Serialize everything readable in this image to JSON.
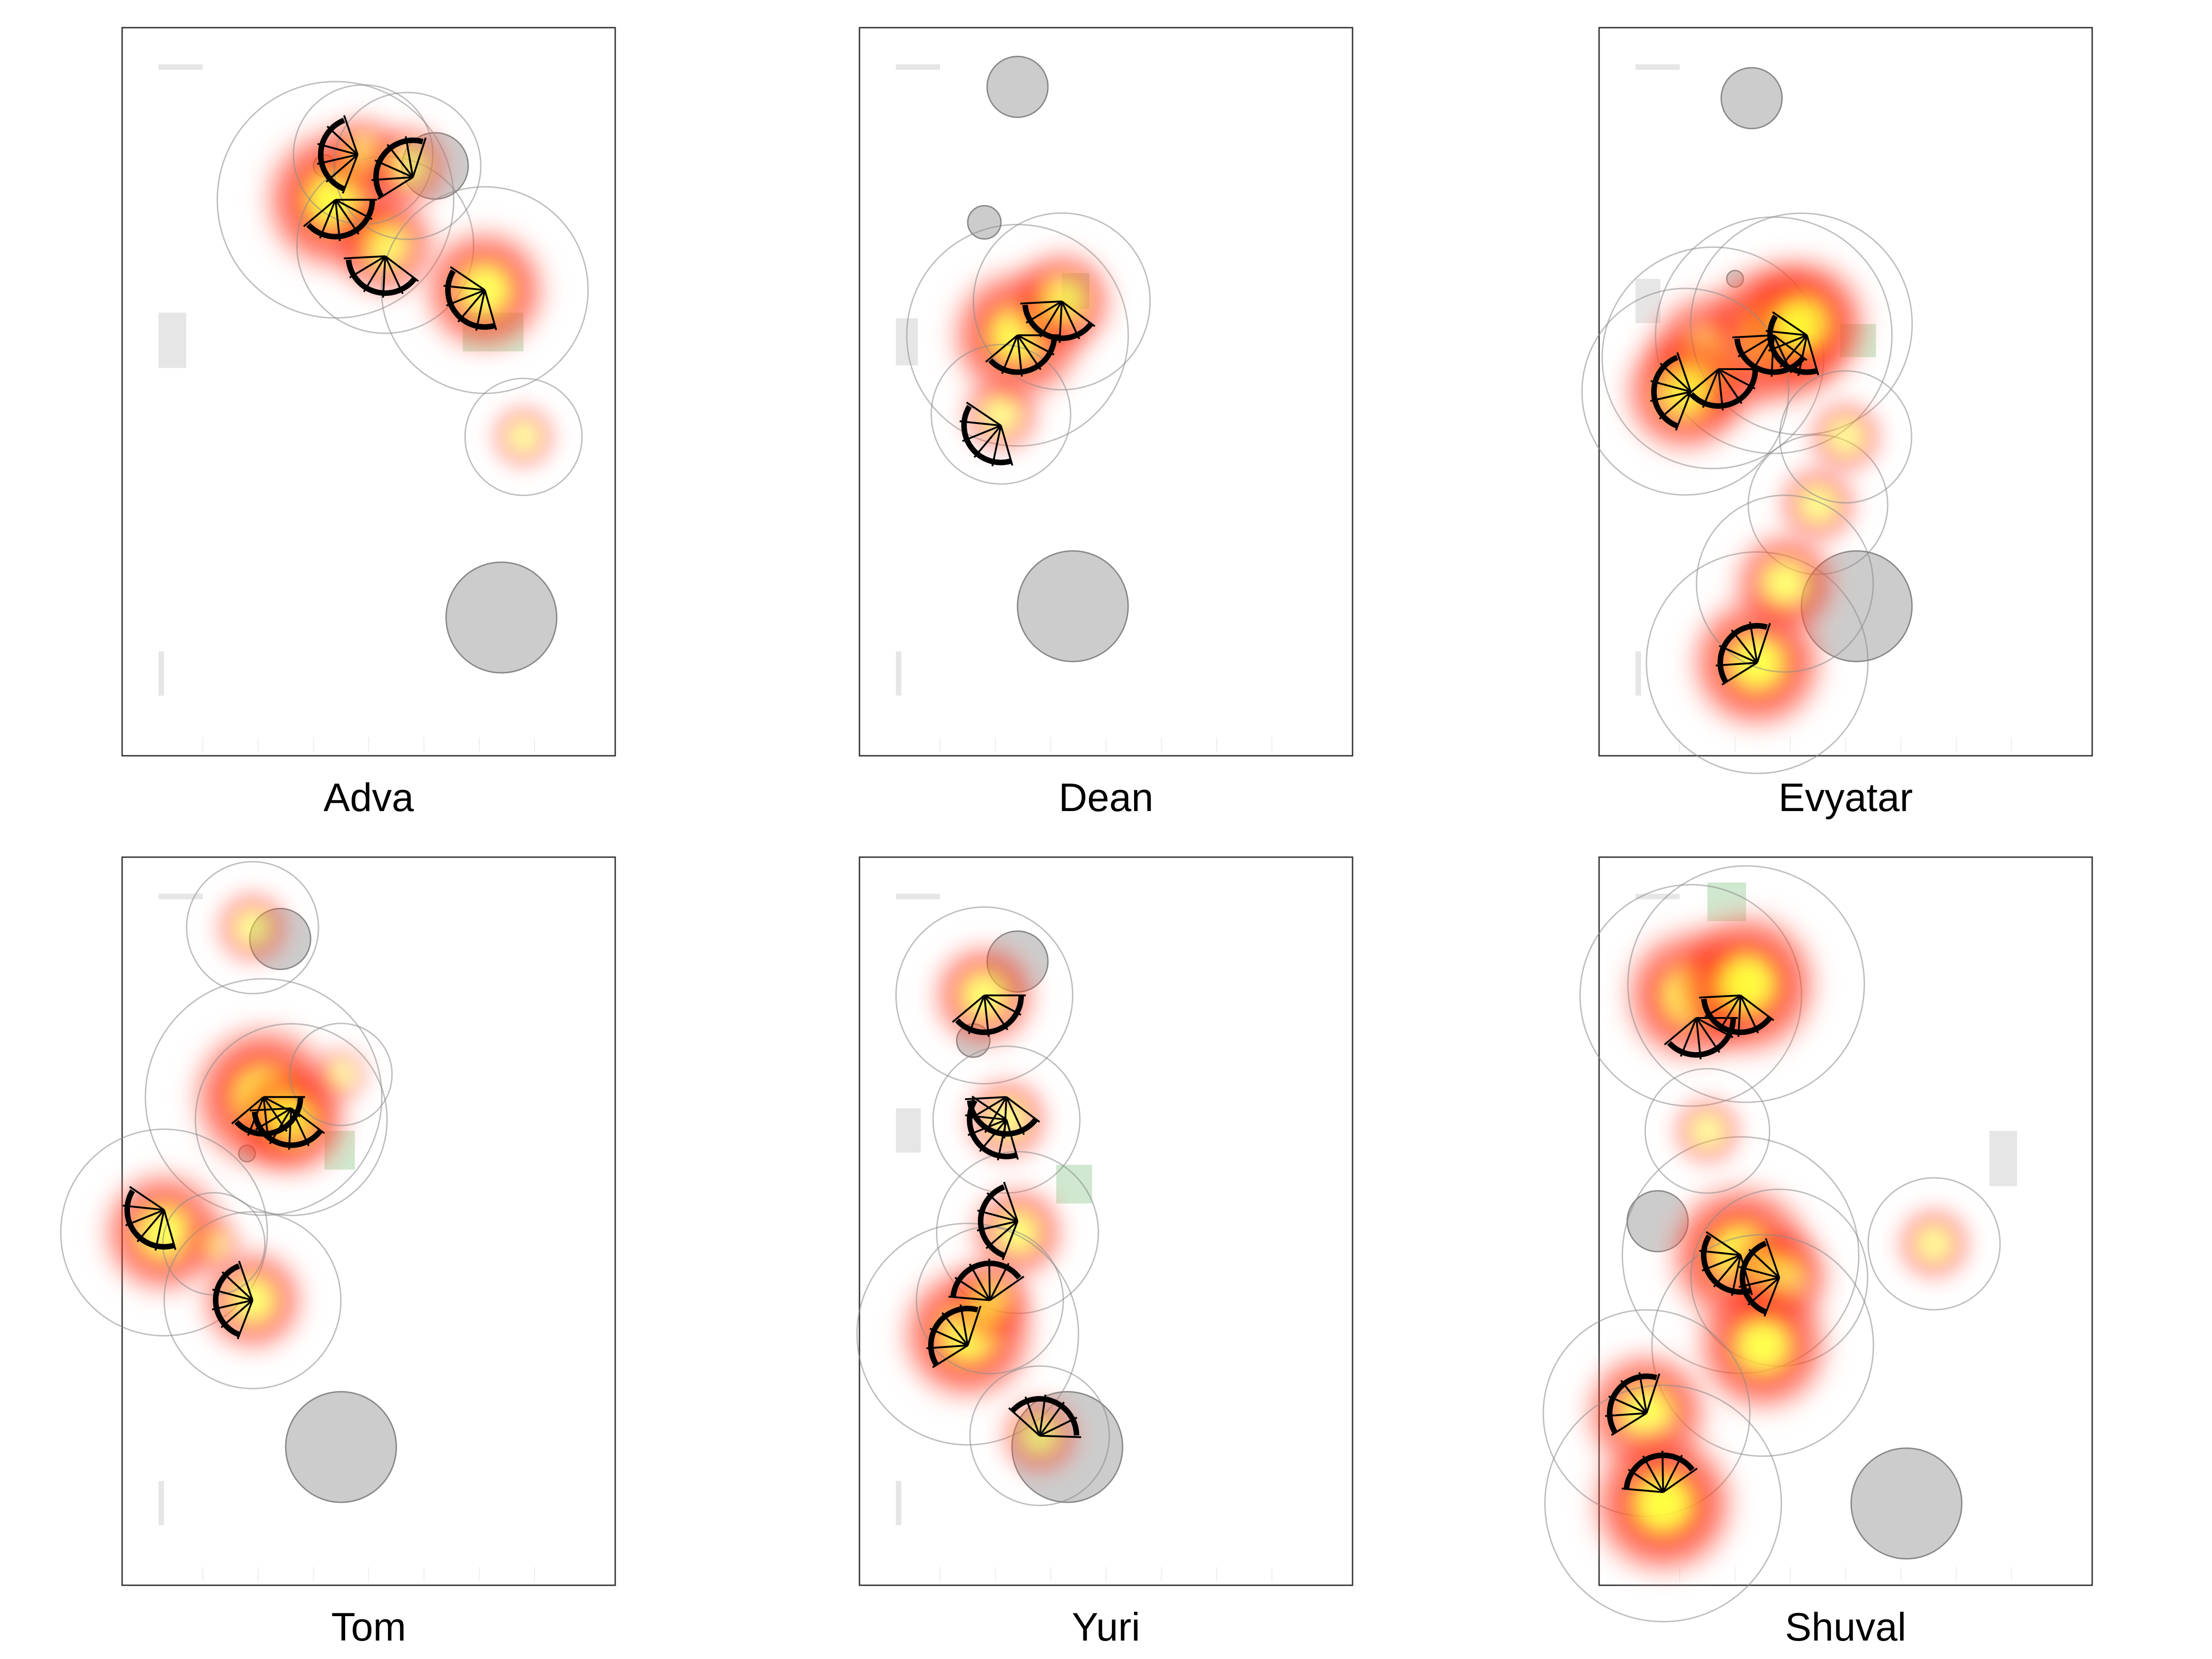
{
  "figure": {
    "panels": [
      "Adva",
      "Dean",
      "Evyatar",
      "Tom",
      "Yuri",
      "Shuval"
    ]
  },
  "colors": {
    "obstacle_circle": "#cccccc",
    "wall_bar": "#e6e6e6",
    "goal_area": "#cfe8cf",
    "density_low": "#fff0ec",
    "density_mid": "#ff3b1f",
    "density_high": "#ffff33",
    "contour": "#888888",
    "direction_marker": "#000000",
    "panel_border": "#333333"
  },
  "chart_data": [
    {
      "type": "heatmap",
      "subtype": "2D density map with direction markers",
      "name": "Adva",
      "hotspots": [
        [
          3.4,
          4.7,
          1.0
        ],
        [
          4.3,
          4.3,
          0.6
        ],
        [
          6.1,
          3.9,
          0.8
        ],
        [
          3.9,
          5.1,
          0.35
        ],
        [
          4.7,
          5.0,
          0.4
        ],
        [
          6.8,
          2.6,
          0.2
        ]
      ],
      "markers": [
        [
          3.4,
          4.7
        ],
        [
          4.3,
          4.2
        ],
        [
          6.1,
          3.9
        ],
        [
          3.8,
          5.1
        ],
        [
          4.8,
          4.9
        ]
      ],
      "circles": [
        [
          5.2,
          5.0,
          0.6
        ],
        [
          6.4,
          1.0,
          1.0
        ],
        [
          3.2,
          5.0,
          0.2
        ]
      ],
      "walls": [
        [
          0.2,
          2.7,
          0.5,
          1.0
        ],
        [
          0.2,
          5.8,
          0.8,
          0.1
        ],
        [
          0.2,
          -0.1,
          0.1,
          0.8
        ]
      ],
      "goal": [
        5.7,
        3.0,
        1.1,
        0.7
      ]
    },
    {
      "type": "heatmap",
      "subtype": "2D density map with direction markers",
      "name": "Dean",
      "hotspots": [
        [
          2.4,
          3.5,
          0.9
        ],
        [
          3.2,
          3.8,
          0.6
        ],
        [
          2.1,
          2.8,
          0.35
        ]
      ],
      "markers": [
        [
          2.4,
          3.5
        ],
        [
          3.2,
          3.8
        ],
        [
          2.1,
          2.7
        ]
      ],
      "circles": [
        [
          2.4,
          5.7,
          0.55
        ],
        [
          1.8,
          4.5,
          0.3
        ],
        [
          3.4,
          1.1,
          1.0
        ]
      ],
      "walls": [
        [
          0.2,
          2.8,
          0.4,
          0.85
        ],
        [
          0.2,
          5.8,
          0.8,
          0.1
        ],
        [
          0.2,
          -0.1,
          0.1,
          0.8
        ]
      ],
      "goal": [
        3.2,
        3.4,
        0.5,
        0.65
      ]
    },
    {
      "type": "heatmap",
      "subtype": "2D density map with direction markers",
      "name": "Evyatar",
      "hotspots": [
        [
          1.6,
          3.3,
          0.9
        ],
        [
          2.7,
          3.5,
          1.0
        ],
        [
          3.2,
          3.6,
          0.9
        ],
        [
          1.1,
          3.0,
          0.8
        ],
        [
          3.5,
          2.0,
          0.35
        ],
        [
          4.0,
          2.6,
          0.3
        ],
        [
          2.4,
          0.6,
          0.9
        ],
        [
          2.9,
          1.3,
          0.6
        ]
      ],
      "markers": [
        [
          1.7,
          3.2
        ],
        [
          2.7,
          3.5
        ],
        [
          3.3,
          3.5
        ],
        [
          1.2,
          3.0
        ],
        [
          2.4,
          0.6
        ]
      ],
      "circles": [
        [
          2.3,
          5.6,
          0.55
        ],
        [
          2.0,
          4.0,
          0.15
        ],
        [
          4.2,
          1.1,
          1.0
        ]
      ],
      "walls": [
        [
          0.2,
          3.2,
          0.45,
          0.8
        ],
        [
          0.2,
          5.8,
          0.8,
          0.1
        ],
        [
          0.2,
          -0.1,
          0.1,
          0.8
        ]
      ],
      "goal": [
        3.9,
        3.0,
        0.65,
        0.6
      ]
    },
    {
      "type": "heatmap",
      "subtype": "2D density map with direction markers",
      "name": "Tom",
      "hotspots": [
        [
          2.1,
          4.1,
          1.0
        ],
        [
          2.6,
          3.9,
          0.7
        ],
        [
          0.3,
          2.9,
          0.8
        ],
        [
          1.9,
          2.3,
          0.6
        ],
        [
          1.9,
          5.6,
          0.3
        ],
        [
          1.2,
          2.8,
          0.1
        ],
        [
          3.5,
          4.3,
          0.1
        ]
      ],
      "markers": [
        [
          2.1,
          4.1
        ],
        [
          2.6,
          4.0
        ],
        [
          0.3,
          3.1
        ],
        [
          1.9,
          2.3
        ]
      ],
      "circles": [
        [
          2.4,
          5.5,
          0.55
        ],
        [
          1.8,
          3.6,
          0.15
        ],
        [
          3.5,
          1.0,
          1.0
        ]
      ],
      "walls": [
        [
          0.2,
          5.8,
          0.8,
          0.1
        ],
        [
          0.2,
          -0.1,
          0.1,
          0.8
        ]
      ],
      "goal": [
        3.2,
        3.1,
        0.55,
        0.7
      ]
    },
    {
      "type": "heatmap",
      "subtype": "2D density map with direction markers",
      "name": "Yuri",
      "hotspots": [
        [
          1.8,
          5.0,
          0.6
        ],
        [
          2.2,
          3.9,
          0.4
        ],
        [
          2.4,
          2.9,
          0.5
        ],
        [
          1.5,
          2.0,
          0.9
        ],
        [
          1.9,
          2.3,
          0.4
        ],
        [
          2.8,
          1.1,
          0.35
        ]
      ],
      "markers": [
        [
          1.8,
          5.0
        ],
        [
          2.2,
          4.1
        ],
        [
          2.2,
          3.9
        ],
        [
          2.4,
          3.0
        ],
        [
          1.5,
          1.9
        ],
        [
          1.9,
          2.3
        ],
        [
          2.8,
          1.1
        ]
      ],
      "circles": [
        [
          2.4,
          5.3,
          0.55
        ],
        [
          1.6,
          4.6,
          0.3
        ],
        [
          3.3,
          1.0,
          1.0
        ]
      ],
      "walls": [
        [
          0.2,
          3.2,
          0.45,
          0.8
        ],
        [
          0.2,
          5.8,
          0.8,
          0.1
        ],
        [
          0.2,
          -0.1,
          0.1,
          0.8
        ]
      ],
      "goal": [
        3.1,
        2.8,
        0.65,
        0.7
      ]
    },
    {
      "type": "heatmap",
      "subtype": "2D density map with direction markers",
      "name": "Shuval",
      "hotspots": [
        [
          1.2,
          5.0,
          0.9
        ],
        [
          2.2,
          5.1,
          1.0
        ],
        [
          2.1,
          2.7,
          1.0
        ],
        [
          2.8,
          2.5,
          0.6
        ],
        [
          2.5,
          1.9,
          0.9
        ],
        [
          0.4,
          1.3,
          0.8
        ],
        [
          0.7,
          0.5,
          1.0
        ],
        [
          1.5,
          3.8,
          0.25
        ],
        [
          5.6,
          2.8,
          0.3
        ]
      ],
      "markers": [
        [
          1.3,
          4.8
        ],
        [
          2.1,
          5.0
        ],
        [
          2.1,
          2.7
        ],
        [
          2.8,
          2.5
        ],
        [
          0.4,
          1.3
        ],
        [
          0.7,
          0.6
        ]
      ],
      "circles": [
        [
          0.6,
          3.0,
          0.55
        ],
        [
          5.1,
          0.5,
          1.0
        ]
      ],
      "walls": [
        [
          6.6,
          2.8,
          0.5,
          1.0
        ],
        [
          0.2,
          5.8,
          0.8,
          0.1
        ]
      ],
      "goal": [
        1.5,
        5.3,
        0.7,
        0.7
      ]
    }
  ]
}
